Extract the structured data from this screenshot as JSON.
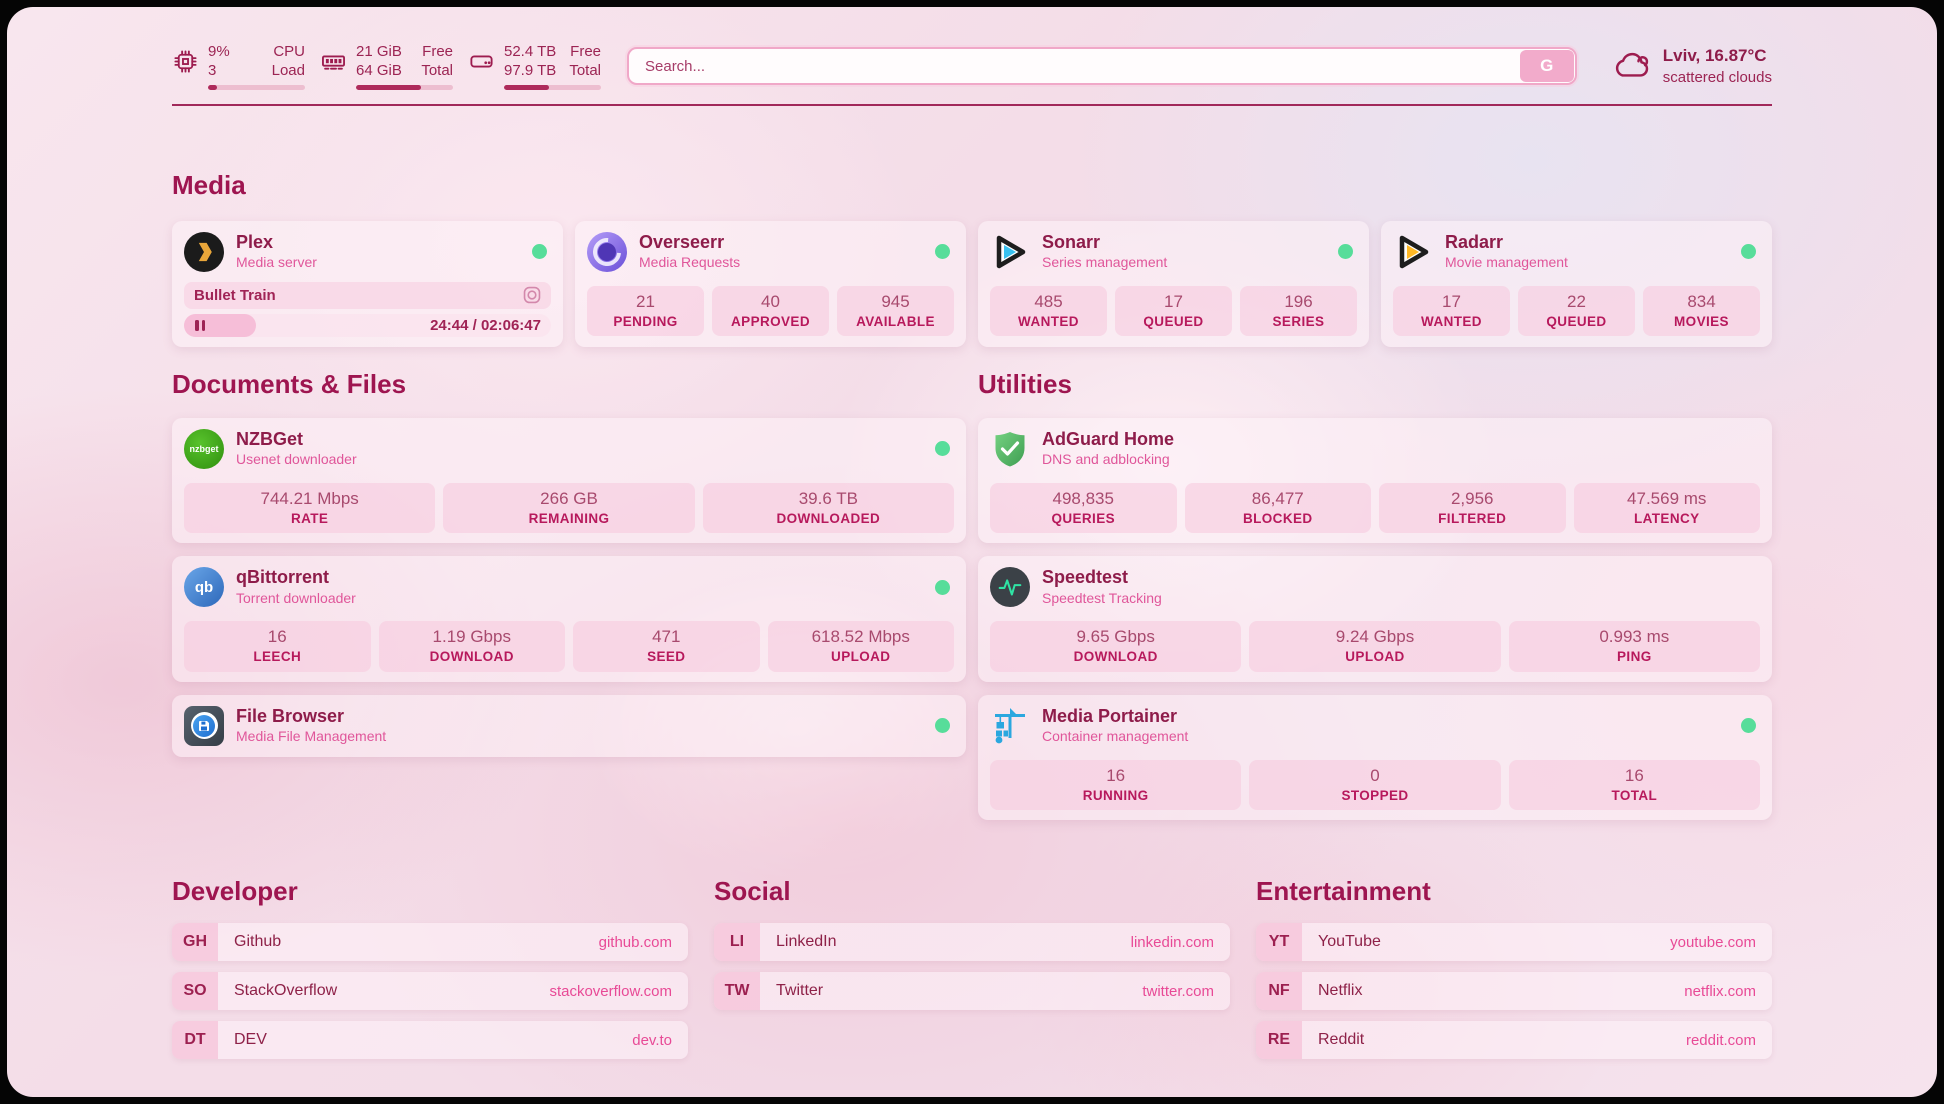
{
  "topbar": {
    "cpu": {
      "value_top": "9%",
      "value_bottom": "3",
      "label_top": "CPU",
      "label_bottom": "Load",
      "progress_pct": 9
    },
    "ram": {
      "value_top": "21 GiB",
      "value_bottom": "64 GiB",
      "label_top": "Free",
      "label_bottom": "Total",
      "progress_pct": 67
    },
    "disk": {
      "value_top": "52.4 TB",
      "value_bottom": "97.9 TB",
      "label_top": "Free",
      "label_bottom": "Total",
      "progress_pct": 46
    },
    "search": {
      "placeholder": "Search...",
      "button_label": "G"
    },
    "weather": {
      "location": "Lviv, 16.87°C",
      "condition": "scattered clouds"
    }
  },
  "media": {
    "heading": "Media",
    "plex": {
      "title": "Plex",
      "subtitle": "Media server",
      "now_playing": "Bullet Train",
      "time_display": "24:44 / 02:06:47",
      "progress_pct": 19.5
    },
    "overseerr": {
      "title": "Overseerr",
      "subtitle": "Media Requests",
      "stats": [
        {
          "value": "21",
          "label": "PENDING"
        },
        {
          "value": "40",
          "label": "APPROVED"
        },
        {
          "value": "945",
          "label": "AVAILABLE"
        }
      ]
    },
    "sonarr": {
      "title": "Sonarr",
      "subtitle": "Series management",
      "stats": [
        {
          "value": "485",
          "label": "WANTED"
        },
        {
          "value": "17",
          "label": "QUEUED"
        },
        {
          "value": "196",
          "label": "SERIES"
        }
      ]
    },
    "radarr": {
      "title": "Radarr",
      "subtitle": "Movie management",
      "stats": [
        {
          "value": "17",
          "label": "WANTED"
        },
        {
          "value": "22",
          "label": "QUEUED"
        },
        {
          "value": "834",
          "label": "MOVIES"
        }
      ]
    }
  },
  "documents": {
    "heading": "Documents & Files",
    "nzbget": {
      "title": "NZBGet",
      "subtitle": "Usenet downloader",
      "icon_label": "nzbget",
      "stats": [
        {
          "value": "744.21 Mbps",
          "label": "RATE"
        },
        {
          "value": "266 GB",
          "label": "REMAINING"
        },
        {
          "value": "39.6 TB",
          "label": "DOWNLOADED"
        }
      ]
    },
    "qbittorrent": {
      "title": "qBittorrent",
      "subtitle": "Torrent downloader",
      "icon_label": "qb",
      "stats": [
        {
          "value": "16",
          "label": "LEECH"
        },
        {
          "value": "1.19 Gbps",
          "label": "DOWNLOAD"
        },
        {
          "value": "471",
          "label": "SEED"
        },
        {
          "value": "618.52 Mbps",
          "label": "UPLOAD"
        }
      ]
    },
    "filebrowser": {
      "title": "File Browser",
      "subtitle": "Media File Management"
    }
  },
  "utilities": {
    "heading": "Utilities",
    "adguard": {
      "title": "AdGuard Home",
      "subtitle": "DNS and adblocking",
      "stats": [
        {
          "value": "498,835",
          "label": "QUERIES"
        },
        {
          "value": "86,477",
          "label": "BLOCKED"
        },
        {
          "value": "2,956",
          "label": "FILTERED"
        },
        {
          "value": "47.569 ms",
          "label": "LATENCY"
        }
      ]
    },
    "speedtest": {
      "title": "Speedtest",
      "subtitle": "Speedtest Tracking",
      "stats": [
        {
          "value": "9.65 Gbps",
          "label": "DOWNLOAD"
        },
        {
          "value": "9.24 Gbps",
          "label": "UPLOAD"
        },
        {
          "value": "0.993 ms",
          "label": "PING"
        }
      ]
    },
    "portainer": {
      "title": "Media Portainer",
      "subtitle": "Container management",
      "stats": [
        {
          "value": "16",
          "label": "RUNNING"
        },
        {
          "value": "0",
          "label": "STOPPED"
        },
        {
          "value": "16",
          "label": "TOTAL"
        }
      ]
    }
  },
  "links": {
    "developer": {
      "heading": "Developer",
      "items": [
        {
          "abbr": "GH",
          "name": "Github",
          "url": "github.com"
        },
        {
          "abbr": "SO",
          "name": "StackOverflow",
          "url": "stackoverflow.com"
        },
        {
          "abbr": "DT",
          "name": "DEV",
          "url": "dev.to"
        }
      ]
    },
    "social": {
      "heading": "Social",
      "items": [
        {
          "abbr": "LI",
          "name": "LinkedIn",
          "url": "linkedin.com"
        },
        {
          "abbr": "TW",
          "name": "Twitter",
          "url": "twitter.com"
        }
      ]
    },
    "entertainment": {
      "heading": "Entertainment",
      "items": [
        {
          "abbr": "YT",
          "name": "YouTube",
          "url": "youtube.com"
        },
        {
          "abbr": "NF",
          "name": "Netflix",
          "url": "netflix.com"
        },
        {
          "abbr": "RE",
          "name": "Reddit",
          "url": "reddit.com"
        }
      ]
    }
  },
  "icons": {
    "topbar": [
      "cpu-icon",
      "ram-icon",
      "disk-icon",
      "cloud-icon"
    ],
    "apps": [
      "plex-icon",
      "overseerr-icon",
      "sonarr-icon",
      "radarr-icon",
      "nzbget-icon",
      "qbittorrent-icon",
      "filebrowser-icon",
      "adguard-icon",
      "speedtest-icon",
      "portainer-icon"
    ],
    "misc": [
      "now-playing-icon",
      "pause-icon",
      "status-dot"
    ]
  },
  "colors": {
    "accent": "#9c1c4f",
    "pink_text": "#e0569a",
    "status_green": "#57dd9a",
    "progress_fill": "#ae2a5b"
  }
}
